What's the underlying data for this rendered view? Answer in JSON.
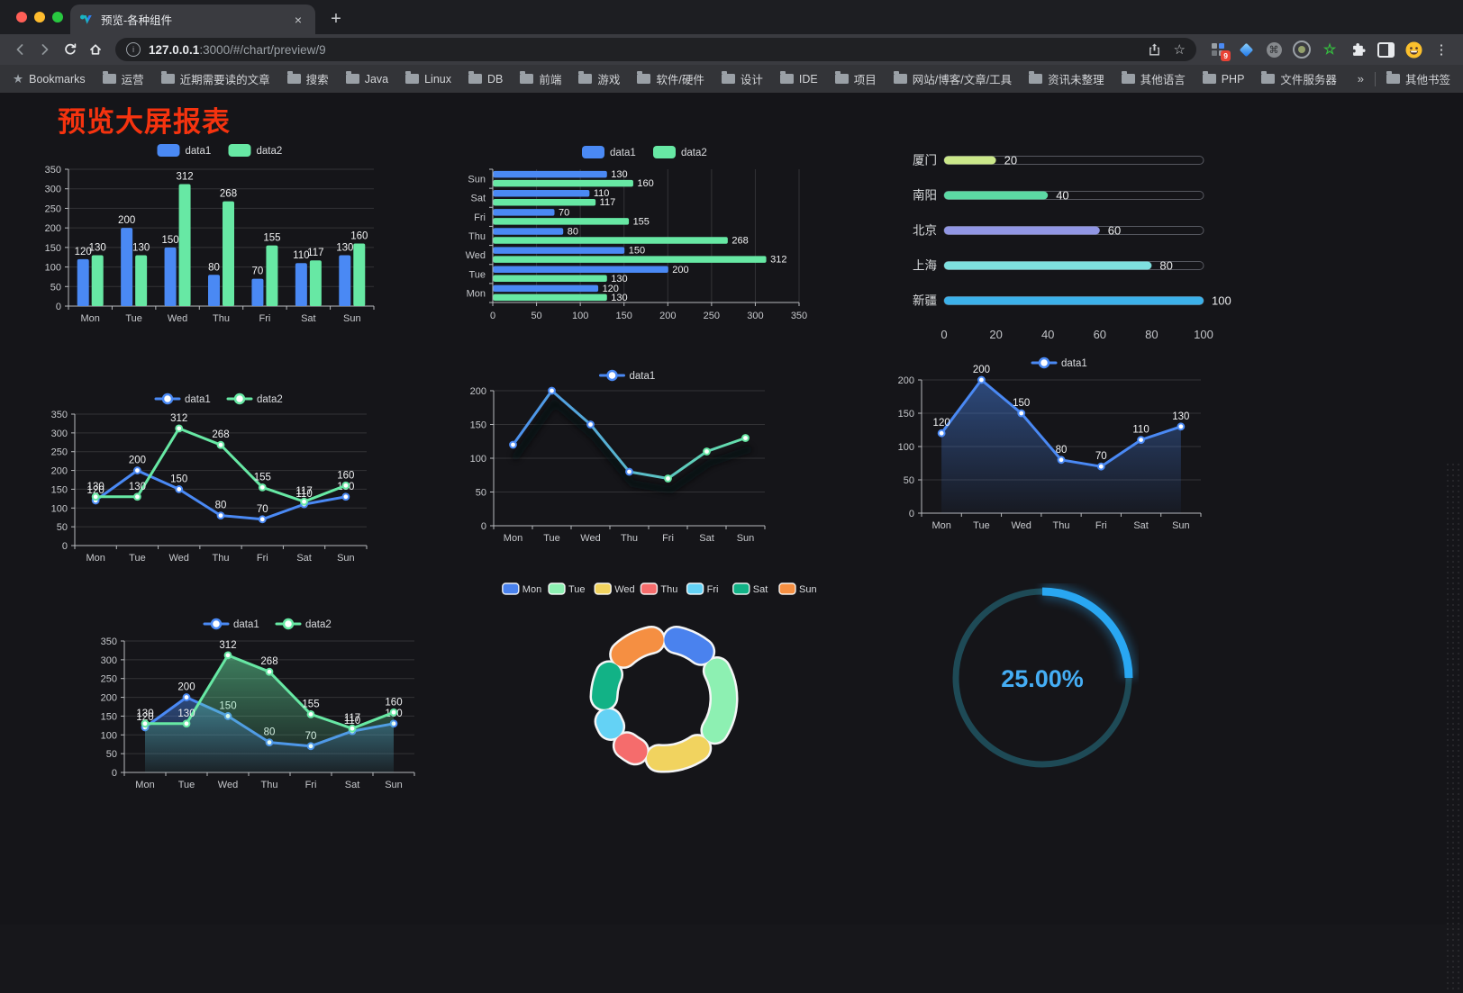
{
  "browser": {
    "tab": {
      "title": "预览-各种组件",
      "close_label": "×",
      "new_tab_label": "+"
    },
    "url": {
      "host": "127.0.0.1",
      "path": ":3000/#/chart/preview/9"
    },
    "extensions_badge": "9",
    "bookmarks": {
      "bar_label": "Bookmarks",
      "folders": [
        "运营",
        "近期需要读的文章",
        "搜索",
        "Java",
        "Linux",
        "DB",
        "前端",
        "游戏",
        "软件/硬件",
        "设计",
        "IDE",
        "项目",
        "网站/博客/文章/工具",
        "资讯未整理",
        "其他语言",
        "PHP",
        "文件服务器"
      ],
      "overflow_label": "»",
      "other_bookmarks_label": "其他书签"
    }
  },
  "page": {
    "title": "预览大屏报表",
    "title_color": "#f5330f"
  },
  "chart_data": [
    {
      "id": "grouped-bar-vertical",
      "type": "bar",
      "categories": [
        "Mon",
        "Tue",
        "Wed",
        "Thu",
        "Fri",
        "Sat",
        "Sun"
      ],
      "series": [
        {
          "name": "data1",
          "color": "#4a89f4",
          "values": [
            120,
            200,
            150,
            80,
            70,
            110,
            130
          ]
        },
        {
          "name": "data2",
          "color": "#67e8a4",
          "values": [
            130,
            130,
            312,
            268,
            155,
            117,
            160
          ]
        }
      ],
      "ylim": [
        0,
        350
      ],
      "yticks": [
        0,
        50,
        100,
        150,
        200,
        250,
        300,
        350
      ],
      "value_labels": true,
      "legend_position": "top"
    },
    {
      "id": "grouped-bar-horizontal",
      "type": "hbar",
      "categories": [
        "Sun",
        "Sat",
        "Fri",
        "Thu",
        "Wed",
        "Tue",
        "Mon"
      ],
      "series": [
        {
          "name": "data1",
          "color": "#4a89f4",
          "values": [
            130,
            110,
            70,
            80,
            150,
            200,
            120
          ]
        },
        {
          "name": "data2",
          "color": "#67e8a4",
          "values": [
            160,
            117,
            155,
            268,
            312,
            130,
            130
          ]
        }
      ],
      "xlim": [
        0,
        350
      ],
      "xticks": [
        0,
        50,
        100,
        150,
        200,
        250,
        300,
        350
      ],
      "value_labels": true,
      "legend_position": "top"
    },
    {
      "id": "city-progress",
      "type": "progress",
      "rows": [
        {
          "label": "厦门",
          "value": 20,
          "color": "#cbe88a"
        },
        {
          "label": "南阳",
          "value": 40,
          "color": "#5cd9a4"
        },
        {
          "label": "北京",
          "value": 60,
          "color": "#9196e4"
        },
        {
          "label": "上海",
          "value": 80,
          "color": "#7ee0df"
        },
        {
          "label": "新疆",
          "value": 100,
          "color": "#3cb1ea"
        }
      ],
      "xlim": [
        0,
        100
      ],
      "xticks": [
        0,
        20,
        40,
        60,
        80,
        100
      ]
    },
    {
      "id": "line-two-series",
      "type": "line",
      "categories": [
        "Mon",
        "Tue",
        "Wed",
        "Thu",
        "Fri",
        "Sat",
        "Sun"
      ],
      "series": [
        {
          "name": "data1",
          "color": "#4a89f4",
          "values": [
            120,
            200,
            150,
            80,
            70,
            110,
            130
          ]
        },
        {
          "name": "data2",
          "color": "#67e8a4",
          "values": [
            130,
            130,
            312,
            268,
            155,
            117,
            160
          ]
        }
      ],
      "ylim": [
        0,
        350
      ],
      "yticks": [
        0,
        50,
        100,
        150,
        200,
        250,
        300,
        350
      ],
      "value_labels": true,
      "legend_position": "top"
    },
    {
      "id": "line-gradient",
      "type": "line",
      "categories": [
        "Mon",
        "Tue",
        "Wed",
        "Thu",
        "Fri",
        "Sat",
        "Sun"
      ],
      "series": [
        {
          "name": "data1",
          "color": "#4a89f4",
          "color_end": "#67e8a4",
          "gradient_stroke": true,
          "values": [
            120,
            200,
            150,
            80,
            70,
            110,
            130
          ]
        }
      ],
      "ylim": [
        0,
        200
      ],
      "yticks": [
        0,
        50,
        100,
        150,
        200
      ],
      "value_labels": false,
      "shadow": true,
      "legend_position": "top"
    },
    {
      "id": "line-area",
      "type": "line",
      "categories": [
        "Mon",
        "Tue",
        "Wed",
        "Thu",
        "Fri",
        "Sat",
        "Sun"
      ],
      "series": [
        {
          "name": "data1",
          "color": "#4a89f4",
          "area": true,
          "values": [
            120,
            200,
            150,
            80,
            70,
            110,
            130
          ]
        }
      ],
      "ylim": [
        0,
        200
      ],
      "yticks": [
        0,
        50,
        100,
        150,
        200
      ],
      "value_labels": true,
      "legend_position": "top"
    },
    {
      "id": "line-two-area",
      "type": "line",
      "categories": [
        "Mon",
        "Tue",
        "Wed",
        "Thu",
        "Fri",
        "Sat",
        "Sun"
      ],
      "series": [
        {
          "name": "data1",
          "color": "#4a89f4",
          "area": true,
          "values": [
            120,
            200,
            150,
            80,
            70,
            110,
            130
          ]
        },
        {
          "name": "data2",
          "color": "#67e8a4",
          "area": true,
          "values": [
            130,
            130,
            312,
            268,
            155,
            117,
            160
          ]
        }
      ],
      "ylim": [
        0,
        350
      ],
      "yticks": [
        0,
        50,
        100,
        150,
        200,
        250,
        300,
        350
      ],
      "value_labels": true,
      "legend_position": "top"
    },
    {
      "id": "weekday-donut",
      "type": "pie",
      "donut": true,
      "legend_position": "top",
      "slices": [
        {
          "label": "Mon",
          "value": 120,
          "color": "#4a82ee"
        },
        {
          "label": "Tue",
          "value": 200,
          "color": "#8df0b2"
        },
        {
          "label": "Wed",
          "value": 150,
          "color": "#f1d35f"
        },
        {
          "label": "Thu",
          "value": 80,
          "color": "#f56c6c"
        },
        {
          "label": "Fri",
          "value": 70,
          "color": "#64d2f5"
        },
        {
          "label": "Sat",
          "value": 110,
          "color": "#12b286"
        },
        {
          "label": "Sun",
          "value": 130,
          "color": "#f58f42"
        }
      ]
    },
    {
      "id": "percent-gauge",
      "type": "gauge",
      "value": 25,
      "max": 100,
      "display": "25.00%",
      "color": "#29a7f2",
      "track_color": "#1e4a56",
      "text_color": "#45aef5"
    }
  ]
}
